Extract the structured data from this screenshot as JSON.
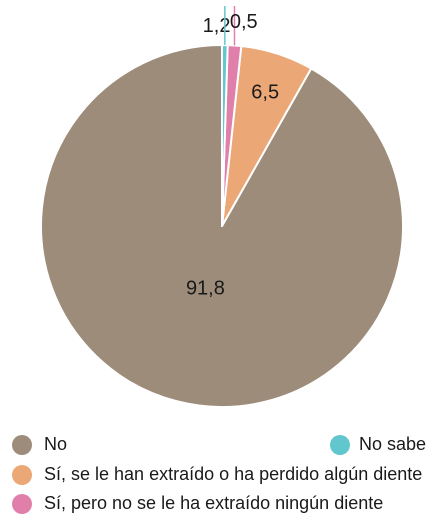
{
  "chart_data": {
    "type": "pie",
    "categories": [
      "No",
      "Sí, se le han extraído o ha perdido algún diente",
      "Sí, pero no se le ha extraído ningún diente",
      "No sabe"
    ],
    "values": [
      91.8,
      6.5,
      1.2,
      0.5
    ],
    "value_labels": [
      "91,8",
      "6,5",
      "1,2",
      "0,5"
    ],
    "colors": [
      "#9c8c79",
      "#eba876",
      "#e07fa9",
      "#62c6ce"
    ],
    "legend_placement": "bottom"
  }
}
